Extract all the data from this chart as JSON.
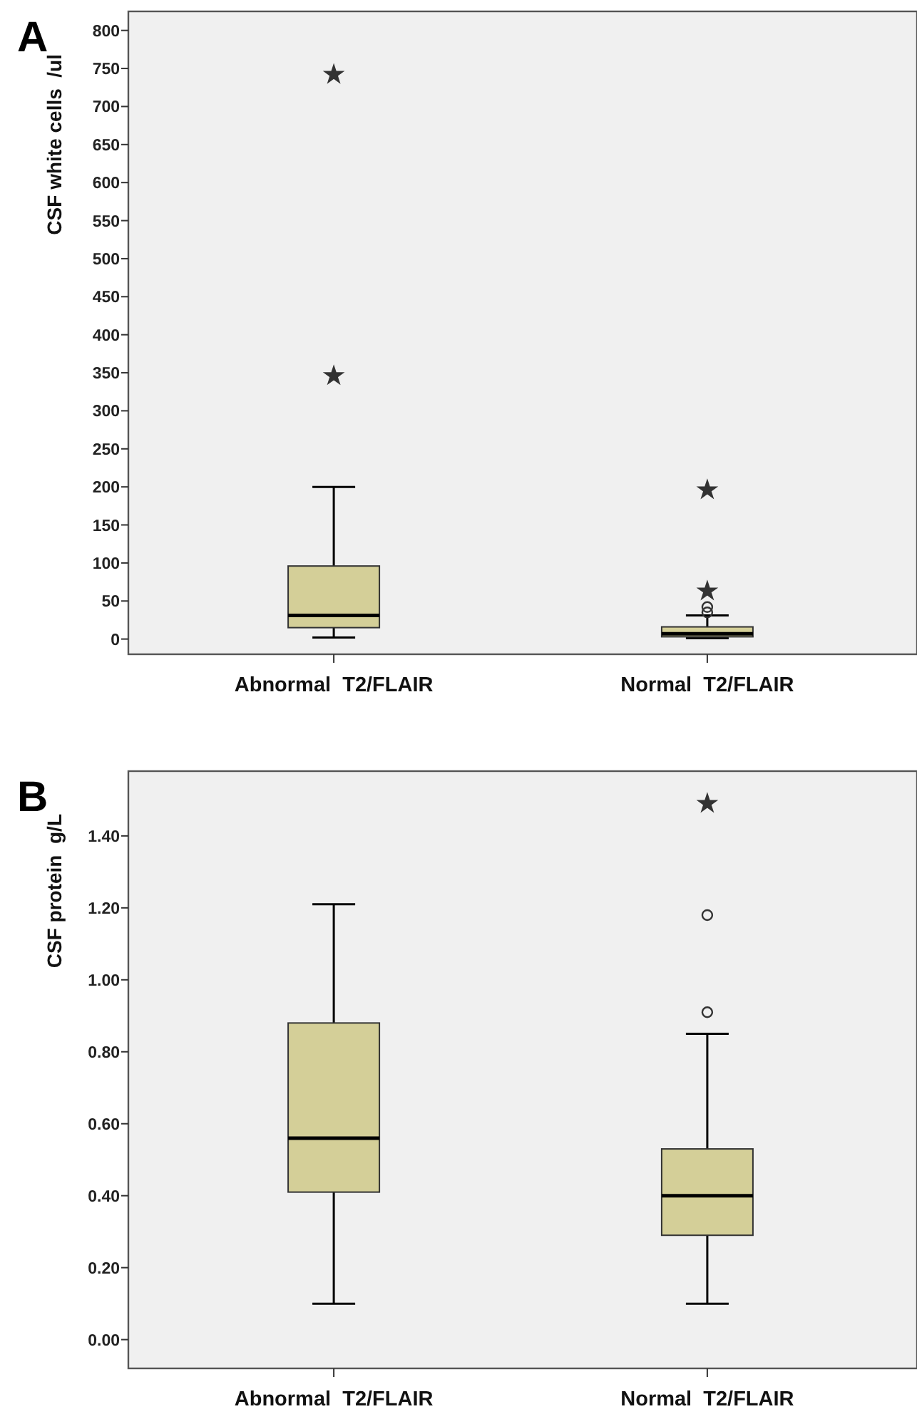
{
  "chart_data": [
    {
      "type": "box",
      "title": "A",
      "ylabel": "CSF white cells  /ul",
      "categories": [
        "Abnormal  T2/FLAIR",
        "Normal  T2/FLAIR"
      ],
      "ylim": [
        -20,
        825
      ],
      "yticks": [
        0,
        50,
        100,
        150,
        200,
        250,
        300,
        350,
        400,
        450,
        500,
        550,
        600,
        650,
        700,
        750,
        800
      ],
      "series": [
        {
          "color": "#d4cf98",
          "boxes": [
            {
              "low": 2,
              "q1": 15,
              "median": 31,
              "q3": 96,
              "high": 200
            },
            {
              "low": 1,
              "q1": 3,
              "median": 7,
              "q3": 16,
              "high": 31,
              "outliers": [
                35,
                42
              ]
            }
          ]
        },
        {
          "type": "scatter",
          "marker": "star",
          "color": "#333333",
          "x": [
            "Abnormal  T2/FLAIR",
            "Abnormal  T2/FLAIR",
            "Normal  T2/FLAIR",
            "Normal  T2/FLAIR"
          ],
          "values": [
            742,
            346,
            63,
            196
          ]
        }
      ]
    },
    {
      "type": "box",
      "title": "B",
      "ylabel": "CSF protein  g/L",
      "categories": [
        "Abnormal  T2/FLAIR",
        "Normal  T2/FLAIR"
      ],
      "ylim": [
        -0.08,
        1.58
      ],
      "yticks": [
        {
          "value": 0,
          "label": "0.00"
        },
        {
          "value": 0.2,
          "label": "0.20"
        },
        {
          "value": 0.4,
          "label": "0.40"
        },
        {
          "value": 0.6,
          "label": "0.60"
        },
        {
          "value": 0.8,
          "label": "0.80"
        },
        {
          "value": 1,
          "label": "1.00"
        },
        {
          "value": 1.2,
          "label": "1.20"
        },
        {
          "value": 1.4,
          "label": "1.40"
        }
      ],
      "series": [
        {
          "color": "#d4cf98",
          "boxes": [
            {
              "low": 0.1,
              "q1": 0.41,
              "median": 0.56,
              "q3": 0.88,
              "high": 1.21
            },
            {
              "low": 0.1,
              "q1": 0.29,
              "median": 0.4,
              "q3": 0.53,
              "high": 0.85,
              "outliers": [
                0.91,
                1.18
              ]
            }
          ]
        },
        {
          "type": "scatter",
          "marker": "star",
          "color": "#333333",
          "x": [
            "Normal  T2/FLAIR"
          ],
          "values": [
            1.49
          ]
        }
      ]
    }
  ]
}
